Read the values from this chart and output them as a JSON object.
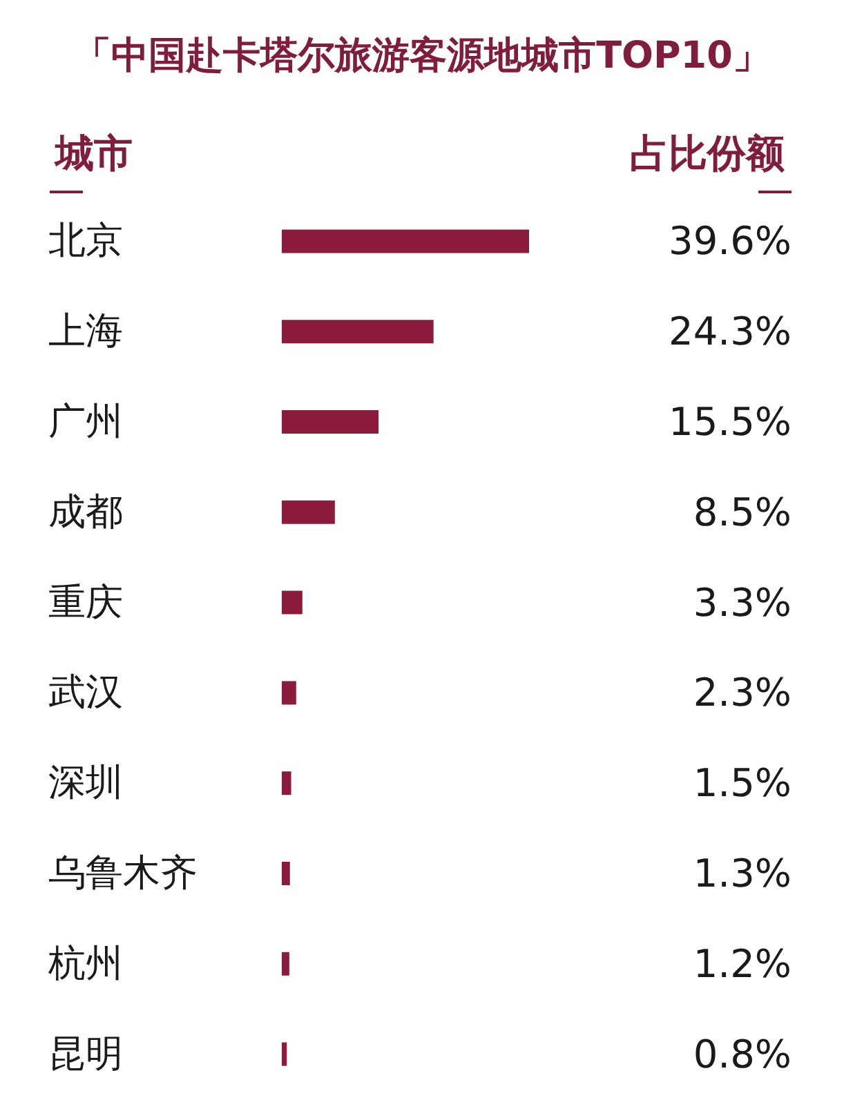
{
  "chart_data": {
    "type": "bar",
    "orientation": "horizontal",
    "title": "「中国赴卡塔尔旅游客源地城市TOP10」",
    "ylabel": "城市",
    "xlabel": "占比份额",
    "categories": [
      "北京",
      "上海",
      "广州",
      "成都",
      "重庆",
      "武汉",
      "深圳",
      "乌鲁木齐",
      "杭州",
      "昆明"
    ],
    "values": [
      39.6,
      24.3,
      15.5,
      8.5,
      3.3,
      2.3,
      1.5,
      1.3,
      1.2,
      0.8
    ],
    "value_labels": [
      "39.6%",
      "24.3%",
      "15.5%",
      "8.5%",
      "3.3%",
      "2.3%",
      "1.5%",
      "1.3%",
      "1.2%",
      "0.8%"
    ],
    "color": "#8c1c3c"
  }
}
